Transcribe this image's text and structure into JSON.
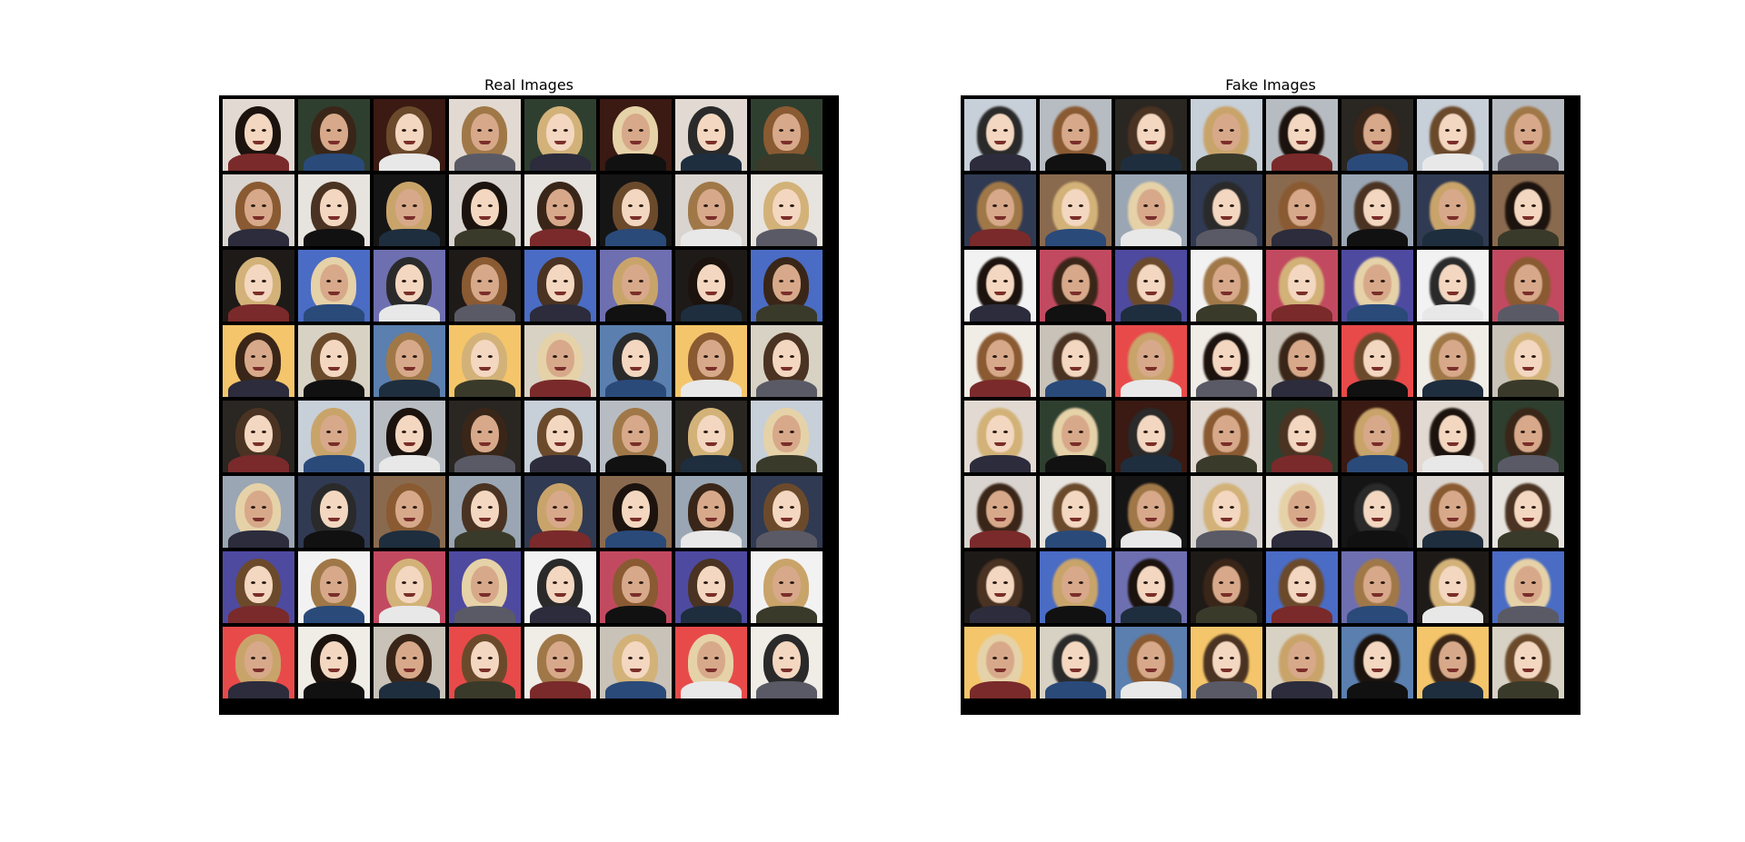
{
  "left_panel": {
    "title": "Real Images"
  },
  "right_panel": {
    "title": "Fake Images"
  },
  "grid": {
    "rows": 8,
    "cols": 8
  },
  "colors": {
    "background": "#ffffff",
    "grid_border": "#000000"
  },
  "tile_palettes": {
    "bg": [
      "#d9d4cf",
      "#b7bcc2",
      "#f0ece6",
      "#6e6fb0",
      "#303a52",
      "#3a1a12",
      "#d8d2c4",
      "#4e4aa0",
      "#e7e3de",
      "#2a2622",
      "#c8c2b8",
      "#1e1a18",
      "#8a6a4e",
      "#e2dad2",
      "#5b7fae",
      "#f2f2f2",
      "#151515",
      "#c7cfd8",
      "#e84a4a",
      "#4a6cc4",
      "#9aa6b4",
      "#2f3f2f",
      "#f4c56a",
      "#c24a60"
    ],
    "skin": [
      "#e8c3a6",
      "#f1d0b4",
      "#d7a98a",
      "#c58a68",
      "#a56a4a",
      "#7a4a30",
      "#e9c9b2",
      "#f3d7c0",
      "#d2a080",
      "#b98062"
    ],
    "hair": [
      "#1c130e",
      "#3a2618",
      "#6b4a2c",
      "#a07848",
      "#d2b278",
      "#e6d2a8",
      "#2a2a2a",
      "#8a5a32",
      "#4a3322",
      "#c9a46a"
    ],
    "cloth": [
      "#111111",
      "#2c2c3c",
      "#5a5a66",
      "#e8e8e8",
      "#2a4a7a",
      "#7a2a2a",
      "#3a3a2a",
      "#1e2e3e"
    ]
  }
}
